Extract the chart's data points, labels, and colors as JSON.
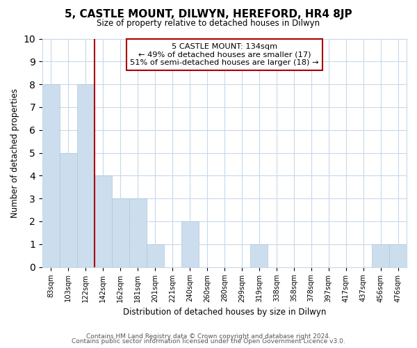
{
  "title": "5, CASTLE MOUNT, DILWYN, HEREFORD, HR4 8JP",
  "subtitle": "Size of property relative to detached houses in Dilwyn",
  "xlabel": "Distribution of detached houses by size in Dilwyn",
  "ylabel": "Number of detached properties",
  "categories": [
    "83sqm",
    "103sqm",
    "122sqm",
    "142sqm",
    "162sqm",
    "181sqm",
    "201sqm",
    "221sqm",
    "240sqm",
    "260sqm",
    "280sqm",
    "299sqm",
    "319sqm",
    "338sqm",
    "358sqm",
    "378sqm",
    "397sqm",
    "417sqm",
    "437sqm",
    "456sqm",
    "476sqm"
  ],
  "values": [
    8,
    5,
    8,
    4,
    3,
    3,
    1,
    0,
    2,
    0,
    0,
    0,
    1,
    0,
    0,
    0,
    0,
    0,
    0,
    1,
    1
  ],
  "bar_color": "#ccdded",
  "marker_line_color": "#aa0000",
  "annotation_text_line1": "5 CASTLE MOUNT: 134sqm",
  "annotation_text_line2": "← 49% of detached houses are smaller (17)",
  "annotation_text_line3": "51% of semi-detached houses are larger (18) →",
  "ylim": [
    0,
    10
  ],
  "yticks": [
    0,
    1,
    2,
    3,
    4,
    5,
    6,
    7,
    8,
    9,
    10
  ],
  "footer_line1": "Contains HM Land Registry data © Crown copyright and database right 2024.",
  "footer_line2": "Contains public sector information licensed under the Open Government Licence v3.0.",
  "background_color": "#ffffff",
  "grid_color": "#c5d9ea",
  "bar_edge_color": "#aec8de"
}
